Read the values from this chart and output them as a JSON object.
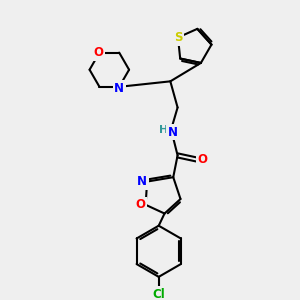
{
  "bg_color": "#efefef",
  "bond_color": "#000000",
  "atom_colors": {
    "N": "#0000ff",
    "O": "#ff0000",
    "S": "#cccc00",
    "Cl": "#00aa00",
    "H": "#339999",
    "C": "#000000"
  },
  "figsize": [
    3.0,
    3.0
  ],
  "dpi": 100
}
